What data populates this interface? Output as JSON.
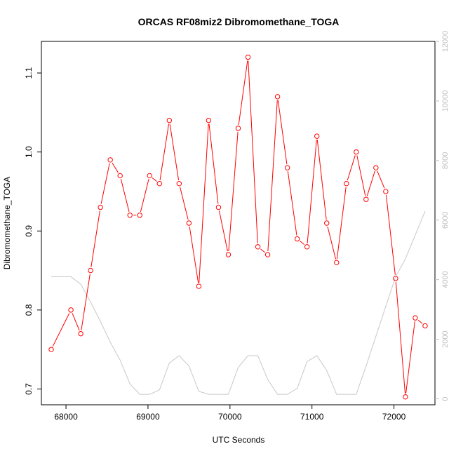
{
  "chart_data": {
    "type": "line",
    "title": "ORCAS RF08miz2 Dibromomethane_TOGA",
    "xlabel": "UTC Seconds",
    "ylabel": "Dibromomethane_TOGA",
    "y2label": "",
    "xlim": [
      67700,
      72500
    ],
    "ylim": [
      0.68,
      1.14
    ],
    "y2lim": [
      -200,
      12000
    ],
    "xticks": [
      68000,
      69000,
      70000,
      71000,
      72000
    ],
    "xtick_labels": [
      "68000",
      "69000",
      "70000",
      "71000",
      "72000"
    ],
    "yticks": [
      0.7,
      0.8,
      0.9,
      1.0,
      1.1
    ],
    "ytick_labels": [
      "0.7",
      "0.8",
      "0.9",
      "1.0",
      "1.1"
    ],
    "y2ticks": [
      0,
      2000,
      4000,
      6000,
      8000,
      10000,
      12000
    ],
    "y2tick_labels": [
      "0",
      "2000",
      "4000",
      "6000",
      "8000",
      "10000",
      "12000"
    ],
    "grid": false,
    "series": [
      {
        "color": "#ff0000",
        "marker": "open-circle",
        "axis": "left",
        "x": [
          67820,
          68060,
          68180,
          68300,
          68420,
          68540,
          68660,
          68780,
          68900,
          69020,
          69140,
          69260,
          69380,
          69500,
          69620,
          69740,
          69860,
          69980,
          70100,
          70220,
          70340,
          70460,
          70580,
          70700,
          70820,
          70940,
          71060,
          71180,
          71300,
          71420,
          71540,
          71660,
          71780,
          71900,
          72020,
          72140,
          72260,
          72380
        ],
        "y": [
          0.75,
          0.8,
          0.77,
          0.85,
          0.93,
          0.99,
          0.97,
          0.92,
          0.92,
          0.97,
          0.96,
          1.04,
          0.96,
          0.91,
          0.83,
          1.04,
          0.93,
          0.87,
          1.03,
          1.12,
          0.88,
          0.87,
          1.07,
          0.98,
          0.89,
          0.88,
          1.02,
          0.91,
          0.86,
          0.96,
          1.0,
          0.94,
          0.98,
          0.95,
          0.84,
          0.69,
          0.79,
          0.78
        ]
      },
      {
        "color": "#c8c8c8",
        "marker": "none",
        "axis": "right",
        "x": [
          67820,
          68060,
          68180,
          68300,
          68420,
          68540,
          68660,
          68780,
          68900,
          69020,
          69140,
          69260,
          69380,
          69500,
          69620,
          69740,
          69860,
          69980,
          70100,
          70220,
          70340,
          70460,
          70580,
          70700,
          70820,
          70940,
          71060,
          71180,
          71300,
          71420,
          71540,
          71660,
          71780,
          71900,
          72020,
          72140,
          72260,
          72380
        ],
        "y": [
          4100,
          4100,
          3850,
          3250,
          2600,
          1900,
          1300,
          500,
          150,
          150,
          300,
          1200,
          1450,
          1100,
          250,
          150,
          150,
          150,
          1050,
          1450,
          1450,
          650,
          150,
          150,
          350,
          1250,
          1450,
          950,
          150,
          150,
          150,
          1100,
          2100,
          3100,
          4100,
          4700,
          5500,
          6300
        ]
      }
    ]
  }
}
